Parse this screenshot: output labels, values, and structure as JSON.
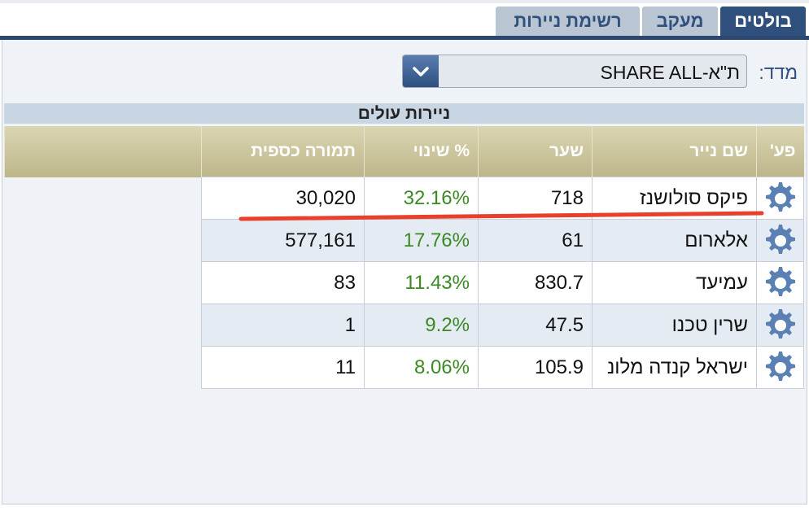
{
  "tabs": [
    "בולטים",
    "מעקב",
    "רשימת ניירות"
  ],
  "index_label": "מדד:",
  "index_value": "ת\"א-SHARE ALL",
  "section_title": "ניירות עולים",
  "table": {
    "columns": [
      "פע'",
      "שם נייר",
      "שער",
      "% שינוי",
      "תמורה כספית"
    ],
    "rows": [
      [
        "פיקס סולושנז",
        "718",
        "32.16%",
        "30,020"
      ],
      [
        "אלארום",
        "61",
        "17.76%",
        "577,161"
      ],
      [
        "עמיעד",
        "830.7",
        "11.43%",
        "83"
      ],
      [
        "שרין טכנו",
        "47.5",
        "9.2%",
        "1"
      ],
      [
        "ישראל קנדה מלונ",
        "105.9",
        "8.06%",
        "11"
      ]
    ]
  }
}
